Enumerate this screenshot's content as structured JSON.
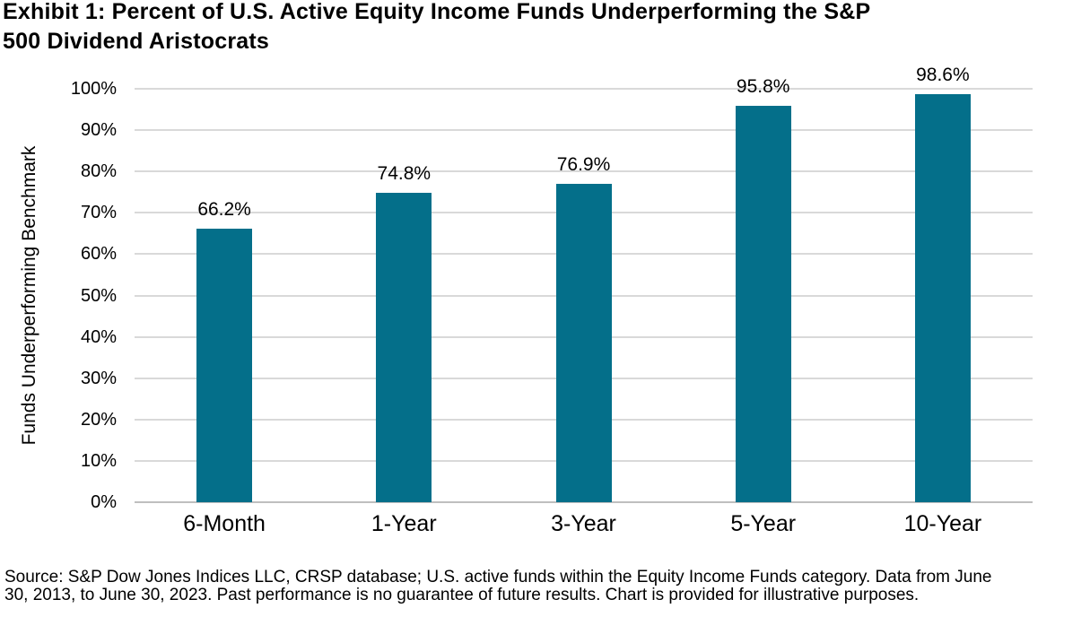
{
  "header": {
    "title_lines": [
      "Exhibit 1: Percent of U.S. Active Equity Income Funds Underperforming the S&P",
      "500 Dividend Aristocrats"
    ]
  },
  "chart_data": {
    "type": "bar",
    "title": "Exhibit 1: Percent of U.S. Active Equity Income Funds Underperforming the S&P 500 Dividend Aristocrats",
    "categories": [
      "6-Month",
      "1-Year",
      "3-Year",
      "5-Year",
      "10-Year"
    ],
    "values": [
      66.2,
      74.8,
      76.9,
      95.8,
      98.6
    ],
    "value_labels": [
      "66.2%",
      "74.8%",
      "76.9%",
      "95.8%",
      "98.6%"
    ],
    "xlabel": "",
    "ylabel": "Funds Underperforming Benchmark",
    "ylim": [
      0,
      100
    ],
    "ytick_step": 10,
    "ytick_labels": [
      "0%",
      "10%",
      "20%",
      "30%",
      "40%",
      "50%",
      "60%",
      "70%",
      "80%",
      "90%",
      "100%"
    ],
    "grid": true,
    "legend": "none",
    "colors": {
      "bar": "#046F8A",
      "gridline": "#D9D9D9",
      "axis_line": "#BFBFBF",
      "text": "#000000"
    }
  },
  "footer": {
    "source_lines": [
      "Source: S&P Dow Jones Indices LLC, CRSP database; U.S. active funds within the Equity Income Funds category. Data from June",
      "30, 2013, to June 30, 2023. Past performance is no guarantee of future results. Chart is provided for illustrative purposes."
    ]
  }
}
